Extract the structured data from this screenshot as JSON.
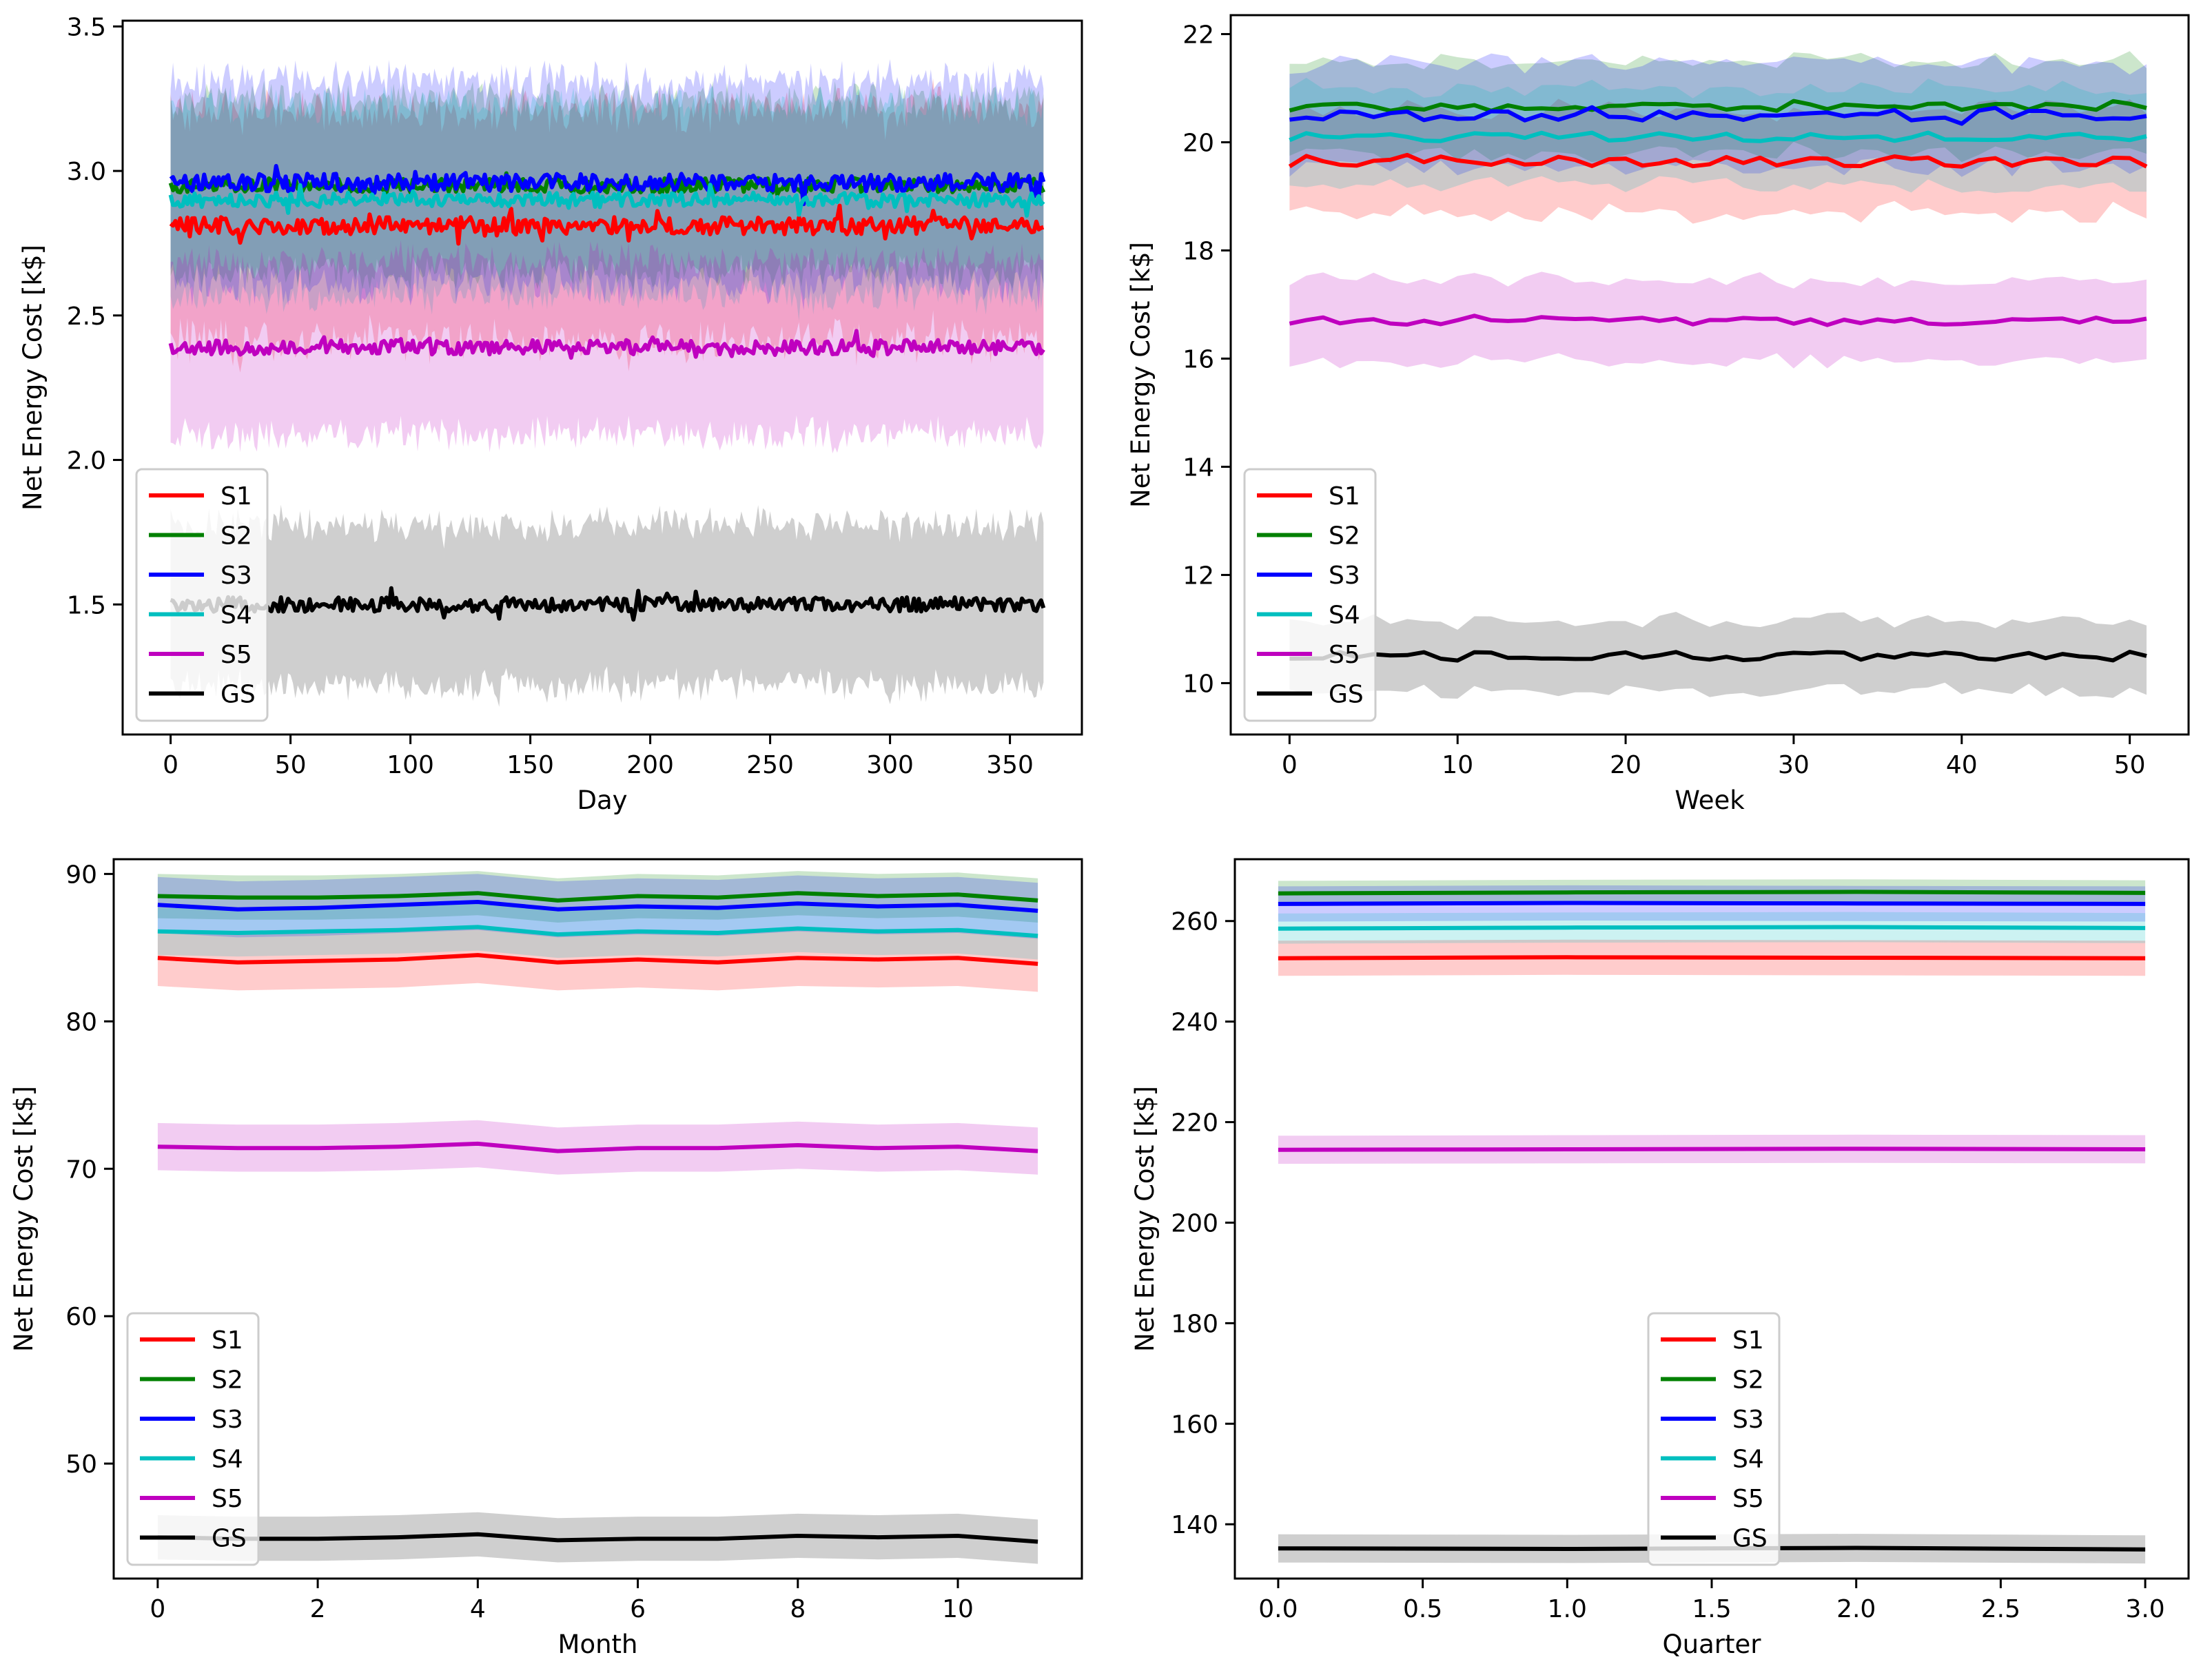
{
  "colors": {
    "S1": "#ff0000",
    "S2": "#008000",
    "S3": "#0000ff",
    "S4": "#00bfbf",
    "S5": "#bf00bf",
    "GS": "#000000"
  },
  "chart_data": [
    {
      "type": "line",
      "xlabel": "Day",
      "ylabel": "Net Energy Cost [k$]",
      "xlim": [
        -20,
        380
      ],
      "ylim": [
        1.05,
        3.52
      ],
      "xticks": [
        0,
        50,
        100,
        150,
        200,
        250,
        300,
        350
      ],
      "xtick_labels": [
        "0",
        "50",
        "100",
        "150",
        "200",
        "250",
        "300",
        "350"
      ],
      "yticks": [
        1.5,
        2.0,
        2.5,
        3.0,
        3.5
      ],
      "ytick_labels": [
        "1.5",
        "2.0",
        "2.5",
        "3.0",
        "3.5"
      ],
      "x_range": [
        0,
        364
      ],
      "noisy": true,
      "legend": "bottom-left",
      "series": [
        {
          "name": "S1",
          "mean": 2.81,
          "band": 0.4,
          "jitter": 0.03
        },
        {
          "name": "S2",
          "mean": 2.95,
          "band": 0.3,
          "jitter": 0.025
        },
        {
          "name": "S3",
          "mean": 2.96,
          "band": 0.35,
          "jitter": 0.03
        },
        {
          "name": "S4",
          "mean": 2.9,
          "band": 0.33,
          "jitter": 0.025
        },
        {
          "name": "S5",
          "mean": 2.39,
          "band": 0.3,
          "jitter": 0.025
        },
        {
          "name": "GS",
          "mean": 1.5,
          "band": 0.28,
          "jitter": 0.025
        }
      ]
    },
    {
      "type": "line",
      "xlabel": "Week",
      "ylabel": "Net Energy Cost [k$]",
      "xlim": [
        -3.5,
        53.5
      ],
      "ylim": [
        9.05,
        22.35
      ],
      "xticks": [
        0,
        10,
        20,
        30,
        40,
        50
      ],
      "xtick_labels": [
        "0",
        "10",
        "20",
        "30",
        "40",
        "50"
      ],
      "yticks": [
        10,
        12,
        14,
        16,
        18,
        20,
        22
      ],
      "ytick_labels": [
        "10",
        "12",
        "14",
        "16",
        "18",
        "20",
        "22"
      ],
      "x_range": [
        0,
        51
      ],
      "noisy": true,
      "legend": "bottom-left",
      "series": [
        {
          "name": "S1",
          "mean": 19.65,
          "band": 0.95,
          "jitter": 0.1
        },
        {
          "name": "S2",
          "mean": 20.65,
          "band": 0.85,
          "jitter": 0.07
        },
        {
          "name": "S3",
          "mean": 20.5,
          "band": 0.95,
          "jitter": 0.1
        },
        {
          "name": "S4",
          "mean": 20.1,
          "band": 0.9,
          "jitter": 0.08
        },
        {
          "name": "S5",
          "mean": 16.7,
          "band": 0.75,
          "jitter": 0.08
        },
        {
          "name": "GS",
          "mean": 10.5,
          "band": 0.65,
          "jitter": 0.08
        }
      ]
    },
    {
      "type": "line",
      "xlabel": "Month",
      "ylabel": "Net Energy Cost [k$]",
      "xlim": [
        -0.55,
        11.55
      ],
      "ylim": [
        42.2,
        91.0
      ],
      "xticks": [
        0,
        2,
        4,
        6,
        8,
        10
      ],
      "xtick_labels": [
        "0",
        "2",
        "4",
        "6",
        "8",
        "10"
      ],
      "yticks": [
        50,
        60,
        70,
        80,
        90
      ],
      "ytick_labels": [
        "50",
        "60",
        "70",
        "80",
        "90"
      ],
      "x": [
        0,
        1,
        2,
        3,
        4,
        5,
        6,
        7,
        8,
        9,
        10,
        11
      ],
      "legend": "bottom-left",
      "series": [
        {
          "name": "S1",
          "values": [
            84.3,
            84.0,
            84.1,
            84.2,
            84.5,
            84.0,
            84.2,
            84.0,
            84.3,
            84.2,
            84.3,
            83.9
          ],
          "band": 1.9
        },
        {
          "name": "S2",
          "values": [
            88.5,
            88.4,
            88.4,
            88.5,
            88.7,
            88.2,
            88.5,
            88.4,
            88.7,
            88.5,
            88.6,
            88.2
          ],
          "band": 1.5
        },
        {
          "name": "S3",
          "values": [
            87.9,
            87.6,
            87.7,
            87.9,
            88.1,
            87.6,
            87.8,
            87.7,
            88.0,
            87.8,
            87.9,
            87.5
          ],
          "band": 1.9
        },
        {
          "name": "S4",
          "values": [
            86.1,
            86.0,
            86.1,
            86.2,
            86.4,
            85.9,
            86.1,
            86.0,
            86.3,
            86.1,
            86.2,
            85.8
          ],
          "band": 1.6
        },
        {
          "name": "S5",
          "values": [
            71.5,
            71.4,
            71.4,
            71.5,
            71.7,
            71.2,
            71.4,
            71.4,
            71.6,
            71.4,
            71.5,
            71.2
          ],
          "band": 1.6
        },
        {
          "name": "GS",
          "values": [
            45.0,
            44.9,
            44.9,
            45.0,
            45.2,
            44.8,
            44.9,
            44.9,
            45.1,
            45.0,
            45.1,
            44.7
          ],
          "band": 1.5
        }
      ]
    },
    {
      "type": "line",
      "xlabel": "Quarter",
      "ylabel": "Net Energy Cost [k$]",
      "xlim": [
        -0.15,
        3.15
      ],
      "ylim": [
        129.2,
        272.3
      ],
      "xticks": [
        0,
        0.5,
        1,
        1.5,
        2,
        2.5,
        3
      ],
      "xtick_labels": [
        "0.0",
        "0.5",
        "1.0",
        "1.5",
        "2.0",
        "2.5",
        "3.0"
      ],
      "yticks": [
        140,
        160,
        180,
        200,
        220,
        240,
        260
      ],
      "ytick_labels": [
        "140",
        "160",
        "180",
        "200",
        "220",
        "240",
        "260"
      ],
      "x": [
        0,
        1,
        2,
        3
      ],
      "legend": "bottom-center",
      "series": [
        {
          "name": "S1",
          "values": [
            252.6,
            252.8,
            252.7,
            252.6
          ],
          "band": 3.5
        },
        {
          "name": "S2",
          "values": [
            265.5,
            265.7,
            265.8,
            265.6
          ],
          "band": 2.5
        },
        {
          "name": "S3",
          "values": [
            263.4,
            263.6,
            263.5,
            263.4
          ],
          "band": 3.5
        },
        {
          "name": "S4",
          "values": [
            258.5,
            258.7,
            258.8,
            258.6
          ],
          "band": 3.0
        },
        {
          "name": "S5",
          "values": [
            214.5,
            214.6,
            214.7,
            214.6
          ],
          "band": 2.8
        },
        {
          "name": "GS",
          "values": [
            135.2,
            135.1,
            135.3,
            135.0
          ],
          "band": 2.8
        }
      ]
    }
  ]
}
